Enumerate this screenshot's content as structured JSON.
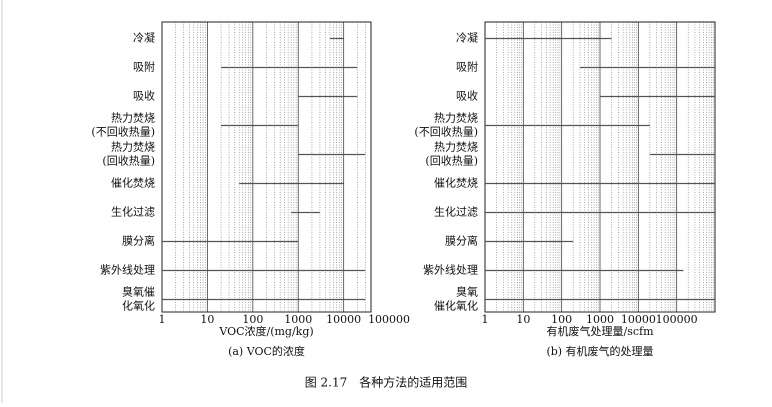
{
  "caption": "图 2.17　各种方法的适用范围",
  "chart_data": [
    {
      "type": "range",
      "xlabel": "VOC浓度/(mg/kg)",
      "subtitle": "(a) VOC的浓度",
      "log": true,
      "minor_grid": true,
      "color": "#555555",
      "categories": [
        [
          "冷凝"
        ],
        [
          "吸附"
        ],
        [
          "吸收"
        ],
        [
          "热力焚烧",
          "(不回收热量)"
        ],
        [
          "热力焚烧",
          "(回收热量)"
        ],
        [
          "催化焚烧"
        ],
        [
          "生化过滤"
        ],
        [
          "膜分离"
        ],
        [
          "紫外线处理"
        ],
        [
          "臭氧催",
          "化氧化"
        ]
      ],
      "values": [
        [
          5000,
          10000
        ],
        [
          20,
          20000
        ],
        [
          1000,
          20000
        ],
        [
          20,
          1000
        ],
        [
          1000,
          30000
        ],
        [
          50,
          10000
        ],
        [
          700,
          3000
        ],
        [
          1,
          1000
        ],
        [
          1,
          30000
        ],
        [
          1,
          30000
        ]
      ],
      "xlim": [
        1,
        40000
      ],
      "xticks": [
        1,
        10,
        100,
        1000,
        10000,
        100000
      ]
    },
    {
      "type": "range",
      "xlabel": "有机废气处理量/scfm",
      "subtitle": "(b) 有机废气的处理量",
      "log": true,
      "minor_grid": true,
      "color": "#555555",
      "categories": [
        [
          "冷凝"
        ],
        [
          "吸附"
        ],
        [
          "吸收"
        ],
        [
          "热力焚烧",
          "(不回收热量)"
        ],
        [
          "热力焚烧",
          "(回收热量)"
        ],
        [
          "催化焚烧"
        ],
        [
          "生化过滤"
        ],
        [
          "膜分离"
        ],
        [
          "紫外线处理"
        ],
        [
          "臭氧",
          "催化氧化"
        ]
      ],
      "values": [
        [
          1,
          2000
        ],
        [
          300,
          1000000
        ],
        [
          1000,
          1000000
        ],
        [
          1,
          20000
        ],
        [
          20000,
          1000000
        ],
        [
          1,
          1000000
        ],
        [
          1,
          1000000
        ],
        [
          1,
          200
        ],
        [
          1,
          150000
        ],
        [
          1,
          1000000
        ]
      ],
      "xlim": [
        1,
        1000000
      ],
      "xticks": [
        1,
        10,
        100,
        1000,
        10000,
        100000
      ]
    }
  ]
}
